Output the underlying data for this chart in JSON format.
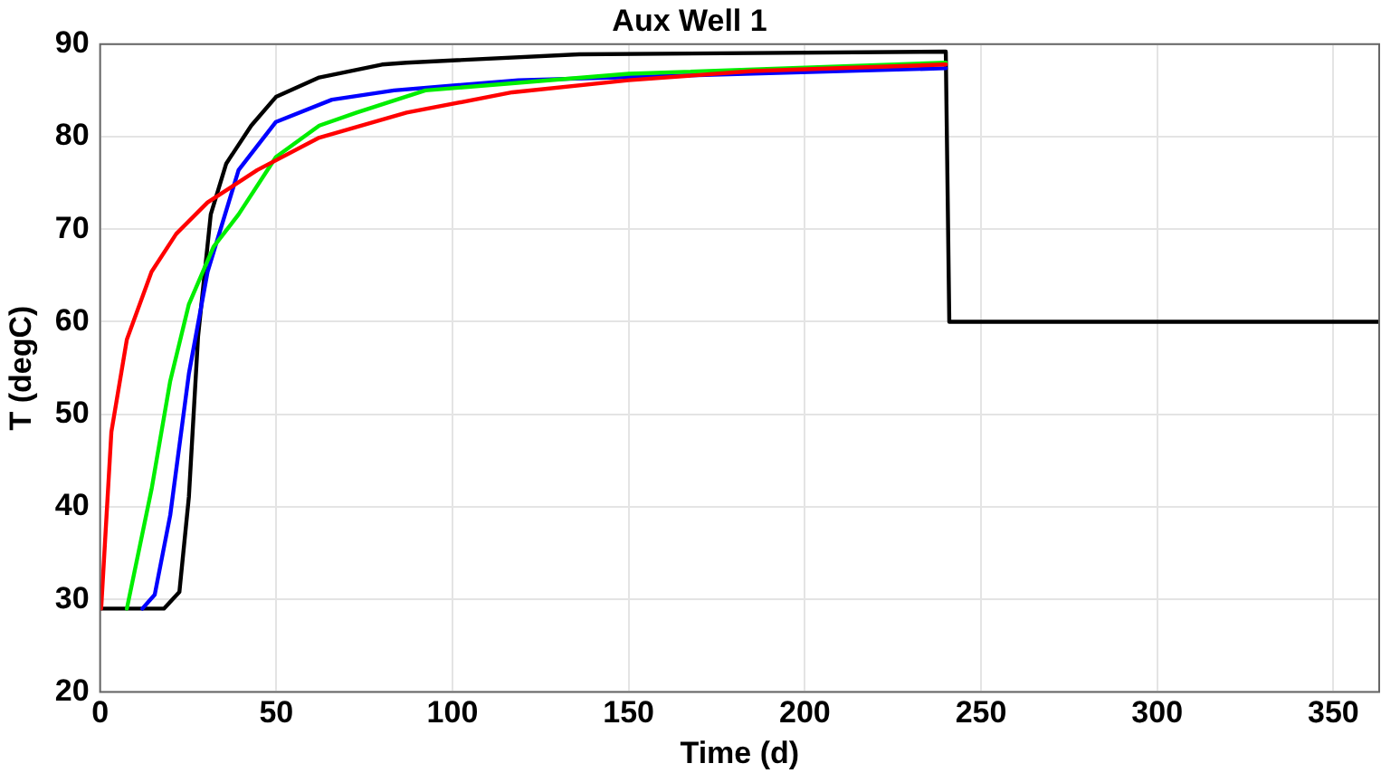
{
  "chart_data": {
    "type": "line",
    "title": "Aux Well 1",
    "xlabel": "Time (d)",
    "ylabel": "T (degC)",
    "xlim": [
      0,
      363
    ],
    "xticks": [
      0,
      50,
      100,
      150,
      200,
      250,
      300,
      350
    ],
    "ylim": [
      20,
      90
    ],
    "yticks": [
      20,
      30,
      40,
      50,
      60,
      70,
      80,
      90
    ],
    "grid": true,
    "legend": false,
    "marker": "none",
    "line_style": "solid",
    "series": [
      {
        "color": "#ff0000",
        "x": [
          0.3,
          3.2,
          7.6,
          14.6,
          21.6,
          30.5,
          44.6,
          62.2,
          87,
          117,
          150,
          185,
          240
        ],
        "values": [
          29,
          48.1,
          58.1,
          65.4,
          69.5,
          72.9,
          76.4,
          79.9,
          82.6,
          84.8,
          86.1,
          87.1,
          87.8
        ]
      },
      {
        "color": "#00ee00",
        "x": [
          7.6,
          14.6,
          19.9,
          25.2,
          32.2,
          39.3,
          49.9,
          62.2,
          72.8,
          92.3,
          150,
          240
        ],
        "values": [
          29,
          41.9,
          53.6,
          61.9,
          68.1,
          71.6,
          77.8,
          81.2,
          82.6,
          85,
          86.8,
          88
        ]
      },
      {
        "color": "#0000ff",
        "x": [
          12,
          15.5,
          19.9,
          25.2,
          30.5,
          39.3,
          49.9,
          65.8,
          83.4,
          118.7,
          240
        ],
        "values": [
          29,
          30.5,
          39.1,
          54.4,
          65.4,
          76.4,
          81.6,
          84,
          85,
          86.1,
          87.4
        ]
      },
      {
        "color": "#000000",
        "x": [
          0,
          18.1,
          22.5,
          25.2,
          27.8,
          31.4,
          35.8,
          42.9,
          49.9,
          62.2,
          80,
          87,
          136,
          240,
          241,
          363
        ],
        "values": [
          29,
          29,
          30.8,
          41.1,
          58.4,
          71.6,
          77.1,
          81.2,
          84.3,
          86.4,
          87.8,
          88,
          88.9,
          89.2,
          60,
          60
        ]
      }
    ]
  }
}
